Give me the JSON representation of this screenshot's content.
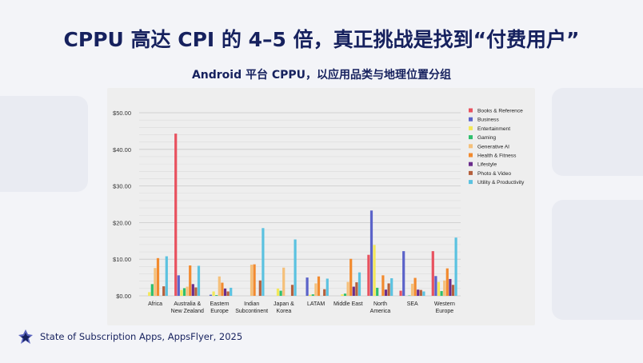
{
  "title": "CPPU 高达 CPI 的 4–5 倍，真正挑战是找到“付费用户”",
  "subtitle": "Android 平台 CPPU，以应用品类与地理位置分组",
  "footer": {
    "source": "State of Subscription Apps, AppsFlyer, 2025",
    "logo_icon": "appsflyer-logo-icon"
  },
  "chart_data": {
    "type": "bar",
    "title": "",
    "xlabel": "",
    "ylabel": "",
    "ylim": [
      0,
      50
    ],
    "yticks": [
      "$0.00",
      "$10.00",
      "$20.00",
      "$30.00",
      "$40.00",
      "$50.00"
    ],
    "ytick_values": [
      0,
      10,
      20,
      30,
      40,
      50
    ],
    "grid": true,
    "legend_position": "top-right",
    "categories": [
      [
        "Africa"
      ],
      [
        "Australia &",
        "New Zealand"
      ],
      [
        "Eastern",
        "Europe"
      ],
      [
        "Indian",
        "Subcontinent"
      ],
      [
        "Japan &",
        "Korea"
      ],
      [
        "LATAM"
      ],
      [
        "Middle East"
      ],
      [
        "North",
        "America"
      ],
      [
        "SEA"
      ],
      [
        "Western",
        "Europe"
      ]
    ],
    "series": [
      {
        "name": "Books & Reference",
        "color": "#e8525f",
        "values": [
          0,
          44.3,
          0,
          0,
          0,
          0,
          0,
          11.2,
          1.4,
          12.2
        ]
      },
      {
        "name": "Business",
        "color": "#5b63c9",
        "values": [
          0,
          5.6,
          0.3,
          0,
          0,
          5.0,
          0,
          23.3,
          12.2,
          5.4
        ]
      },
      {
        "name": "Entertainment",
        "color": "#f3e85a",
        "values": [
          1.0,
          1.6,
          1.2,
          0,
          2.0,
          0.3,
          0.4,
          13.9,
          0,
          3.8
        ]
      },
      {
        "name": "Gaming",
        "color": "#2fbf6d",
        "values": [
          3.2,
          2.1,
          0.2,
          0,
          1.4,
          0.4,
          0.6,
          2.2,
          0.1,
          1.3
        ]
      },
      {
        "name": "Generative AI",
        "color": "#f5c07a",
        "values": [
          7.6,
          2.5,
          5.3,
          8.5,
          7.7,
          3.4,
          3.8,
          0,
          3.3,
          4.2
        ]
      },
      {
        "name": "Health & Fitness",
        "color": "#f28a2e",
        "values": [
          10.3,
          8.3,
          3.6,
          8.6,
          0,
          5.3,
          10.1,
          5.6,
          4.9,
          7.5
        ]
      },
      {
        "name": "Lifestyle",
        "color": "#6a2c8c",
        "values": [
          0,
          3.2,
          2.0,
          0,
          0,
          0,
          2.5,
          1.7,
          1.7,
          4.6
        ]
      },
      {
        "name": "Photo & Video",
        "color": "#b5603d",
        "values": [
          2.6,
          2.3,
          1.2,
          4.2,
          3.0,
          1.8,
          3.7,
          3.4,
          1.6,
          3.0
        ]
      },
      {
        "name": "Utility & Productivity",
        "color": "#5bc2e0",
        "values": [
          10.8,
          8.2,
          2.2,
          18.5,
          15.4,
          4.7,
          6.4,
          4.8,
          1.2,
          15.9
        ]
      }
    ]
  }
}
